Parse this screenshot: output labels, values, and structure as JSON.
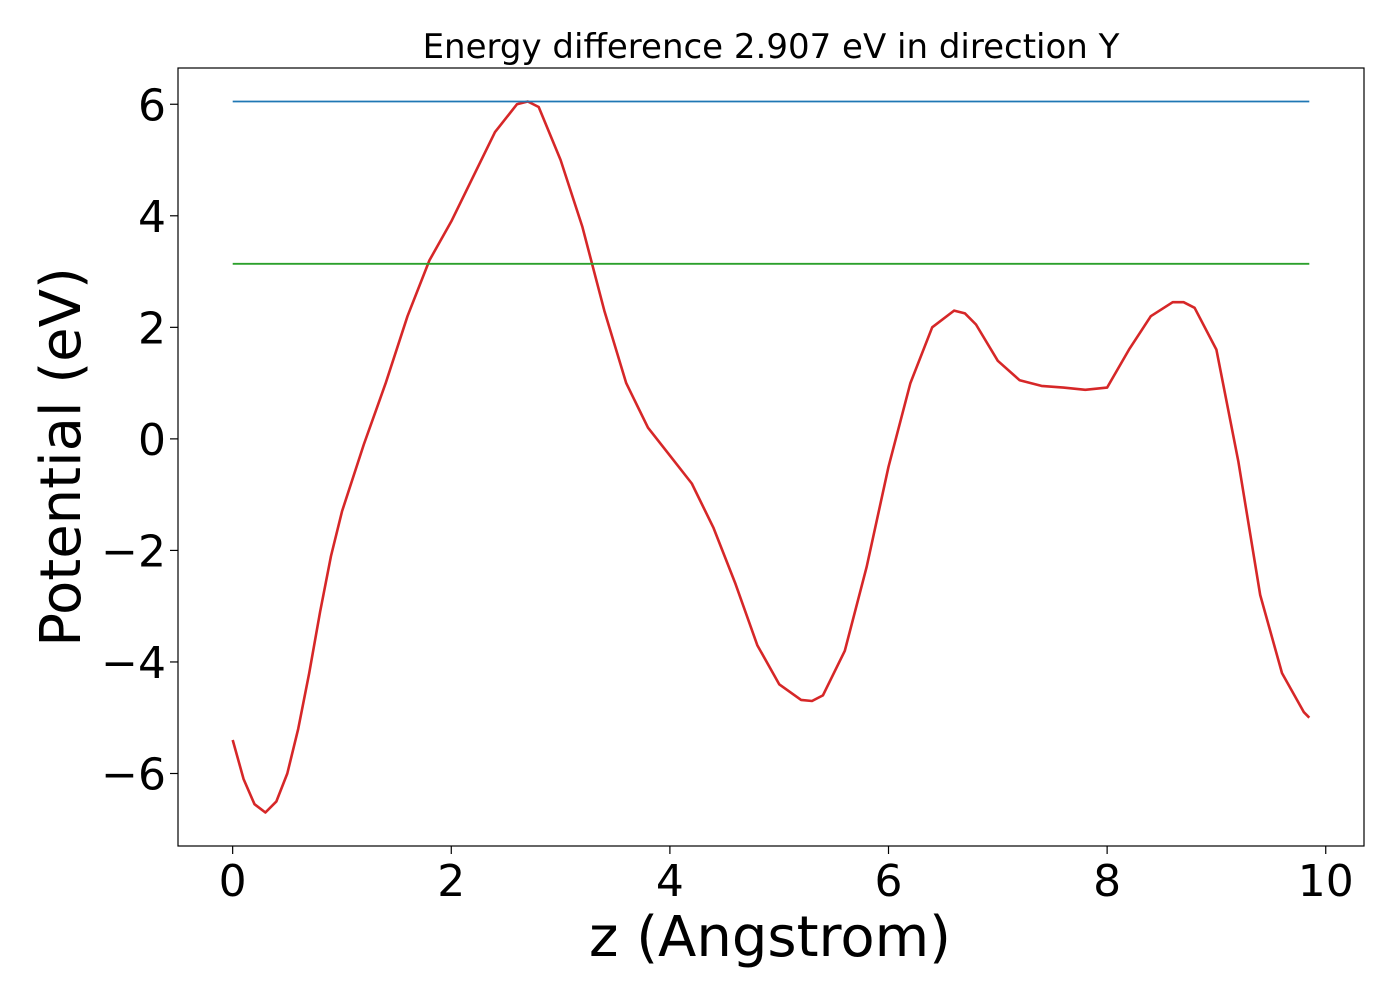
{
  "chart_data": {
    "type": "line",
    "title": "Energy difference 2.907 eV in direction Y",
    "xlabel": "z (Angstrom)",
    "ylabel": "Potential (eV)",
    "xlim": [
      -0.5,
      10.35
    ],
    "ylim": [
      -7.3,
      6.65
    ],
    "xticks": [
      0,
      2,
      4,
      6,
      8,
      10
    ],
    "yticks": [
      -6,
      -4,
      -2,
      0,
      2,
      4,
      6
    ],
    "xtick_labels": [
      "0",
      "2",
      "4",
      "6",
      "8",
      "10"
    ],
    "ytick_labels": [
      "−6",
      "−4",
      "−2",
      "0",
      "2",
      "4",
      "6"
    ],
    "grid": false,
    "series": [
      {
        "color": "#d62728",
        "x": [
          0.0,
          0.1,
          0.2,
          0.3,
          0.4,
          0.5,
          0.6,
          0.7,
          0.8,
          0.9,
          1.0,
          1.2,
          1.4,
          1.6,
          1.8,
          2.0,
          2.2,
          2.4,
          2.6,
          2.7,
          2.8,
          3.0,
          3.2,
          3.4,
          3.6,
          3.8,
          4.0,
          4.2,
          4.4,
          4.6,
          4.8,
          5.0,
          5.2,
          5.3,
          5.4,
          5.6,
          5.8,
          6.0,
          6.2,
          6.4,
          6.6,
          6.7,
          6.8,
          7.0,
          7.2,
          7.4,
          7.6,
          7.8,
          8.0,
          8.2,
          8.4,
          8.6,
          8.7,
          8.8,
          9.0,
          9.2,
          9.4,
          9.6,
          9.8,
          9.85
        ],
        "values": [
          -5.4,
          -6.1,
          -6.55,
          -6.7,
          -6.5,
          -6.0,
          -5.2,
          -4.2,
          -3.1,
          -2.1,
          -1.3,
          -0.1,
          1.0,
          2.2,
          3.2,
          3.9,
          4.7,
          5.5,
          6.0,
          6.05,
          5.95,
          5.0,
          3.8,
          2.3,
          1.0,
          0.2,
          -0.3,
          -0.8,
          -1.6,
          -2.6,
          -3.7,
          -4.4,
          -4.68,
          -4.7,
          -4.6,
          -3.8,
          -2.3,
          -0.5,
          1.0,
          2.0,
          2.3,
          2.25,
          2.05,
          1.4,
          1.05,
          0.95,
          0.92,
          0.88,
          0.92,
          1.6,
          2.2,
          2.45,
          2.45,
          2.35,
          1.6,
          -0.4,
          -2.8,
          -4.2,
          -4.9,
          -5.0
        ]
      },
      {
        "color": "#1f77b4",
        "x": [
          0.0,
          9.85
        ],
        "values": [
          6.05,
          6.05
        ]
      },
      {
        "color": "#2ca02c",
        "x": [
          0.0,
          9.85
        ],
        "values": [
          3.14,
          3.14
        ]
      }
    ]
  }
}
